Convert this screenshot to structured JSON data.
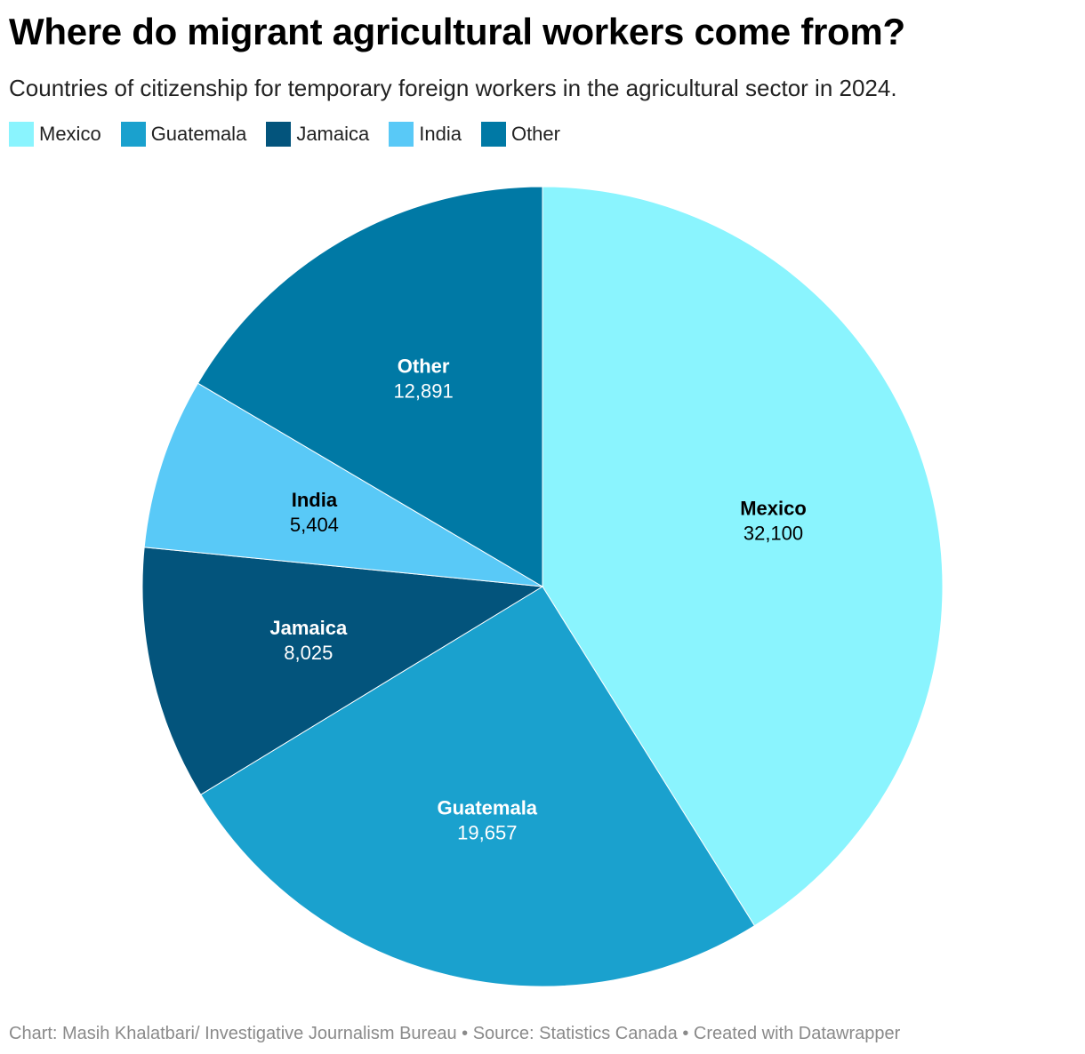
{
  "header": {
    "title": "Where do migrant agricultural workers come from?",
    "subtitle": "Countries of citizenship for temporary foreign workers in the agricultural sector in 2024."
  },
  "footer": {
    "credit": "Chart: Masih Khalatbari/ Investigative Journalism Bureau • Source: Statistics Canada • Created with Datawrapper"
  },
  "chart_data": {
    "type": "pie",
    "start_angle": "12 o'clock, clockwise",
    "legend_placement": "top-left",
    "slices": [
      {
        "label": "Mexico",
        "value": 32100,
        "value_label": "32,100",
        "color": "#8af4fe",
        "text_color": "#000000"
      },
      {
        "label": "Guatemala",
        "value": 19657,
        "value_label": "19,657",
        "color": "#1aa1ce",
        "text_color": "#ffffff"
      },
      {
        "label": "Jamaica",
        "value": 8025,
        "value_label": "8,025",
        "color": "#03547c",
        "text_color": "#ffffff"
      },
      {
        "label": "India",
        "value": 5404,
        "value_label": "5,404",
        "color": "#59c9f7",
        "text_color": "#000000"
      },
      {
        "label": "Other",
        "value": 12891,
        "value_label": "12,891",
        "color": "#0079a5",
        "text_color": "#ffffff"
      }
    ]
  }
}
